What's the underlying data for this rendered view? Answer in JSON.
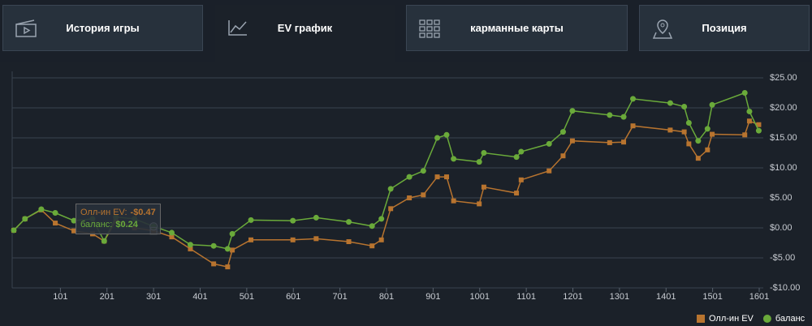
{
  "tabs": [
    {
      "label": "История игры"
    },
    {
      "label": "EV график"
    },
    {
      "label": "карманные карты"
    },
    {
      "label": "Позиция"
    }
  ],
  "chart_data": {
    "type": "line",
    "x": [
      1,
      25,
      60,
      90,
      130,
      170,
      195,
      220,
      260,
      301,
      340,
      380,
      430,
      460,
      470,
      510,
      600,
      650,
      720,
      770,
      790,
      810,
      850,
      880,
      910,
      930,
      945,
      1000,
      1010,
      1080,
      1090,
      1150,
      1180,
      1200,
      1280,
      1310,
      1330,
      1410,
      1440,
      1450,
      1470,
      1490,
      1500,
      1570,
      1580,
      1600
    ],
    "series": [
      {
        "name": "Олл-ин EV",
        "color": "#b8742f",
        "marker": "square",
        "values": [
          -0.4,
          1.5,
          3.0,
          0.8,
          -0.5,
          -1.0,
          -2.2,
          1.2,
          0.0,
          -0.47,
          -1.5,
          -3.5,
          -6.0,
          -6.5,
          -3.7,
          -2.0,
          -2.0,
          -1.8,
          -2.3,
          -3.0,
          -2.0,
          3.2,
          5.0,
          5.5,
          8.5,
          8.5,
          4.5,
          4.0,
          6.8,
          5.8,
          8.0,
          9.5,
          12.0,
          14.5,
          14.2,
          14.3,
          17.0,
          16.3,
          16.0,
          14.0,
          11.6,
          13.0,
          15.6,
          15.5,
          17.8,
          17.2
        ]
      },
      {
        "name": "баланс",
        "color": "#6aaa3a",
        "marker": "circle",
        "values": [
          -0.4,
          1.5,
          3.1,
          2.5,
          1.2,
          1.5,
          -2.2,
          1.8,
          1.5,
          0.24,
          -0.8,
          -2.8,
          -3.0,
          -3.5,
          -1.0,
          1.3,
          1.2,
          1.7,
          1.0,
          0.3,
          1.5,
          6.5,
          8.5,
          9.5,
          15.0,
          15.5,
          11.5,
          11.0,
          12.5,
          11.8,
          12.7,
          14.0,
          16.0,
          19.5,
          18.8,
          18.5,
          21.5,
          20.8,
          20.2,
          17.5,
          14.5,
          16.5,
          20.5,
          22.5,
          19.4,
          16.2
        ]
      }
    ],
    "xlim": [
      1,
      1601
    ],
    "xticks": [
      101,
      201,
      301,
      401,
      501,
      601,
      701,
      801,
      901,
      1001,
      1101,
      1201,
      1301,
      1401,
      1501,
      1601
    ],
    "ylim": [
      -10,
      25
    ],
    "yticks": [
      {
        "value": 25,
        "label": "$25.00"
      },
      {
        "value": 20,
        "label": "$20.00"
      },
      {
        "value": 15,
        "label": "$15.00"
      },
      {
        "value": 10,
        "label": "$10.00"
      },
      {
        "value": 5,
        "label": "$5.00"
      },
      {
        "value": 0,
        "label": "$0.00"
      },
      {
        "value": -5,
        "label": "-$5.00"
      },
      {
        "value": -10,
        "label": "-$10.00"
      }
    ],
    "grid": true,
    "legend": "bottom-right",
    "tooltip": {
      "index": 9,
      "items": [
        {
          "label": "Олл-ин EV:",
          "value": -0.47,
          "value_label": "-$0.47"
        },
        {
          "label": "баланс:",
          "value": 0.24,
          "value_label": "$0.24"
        }
      ]
    }
  }
}
